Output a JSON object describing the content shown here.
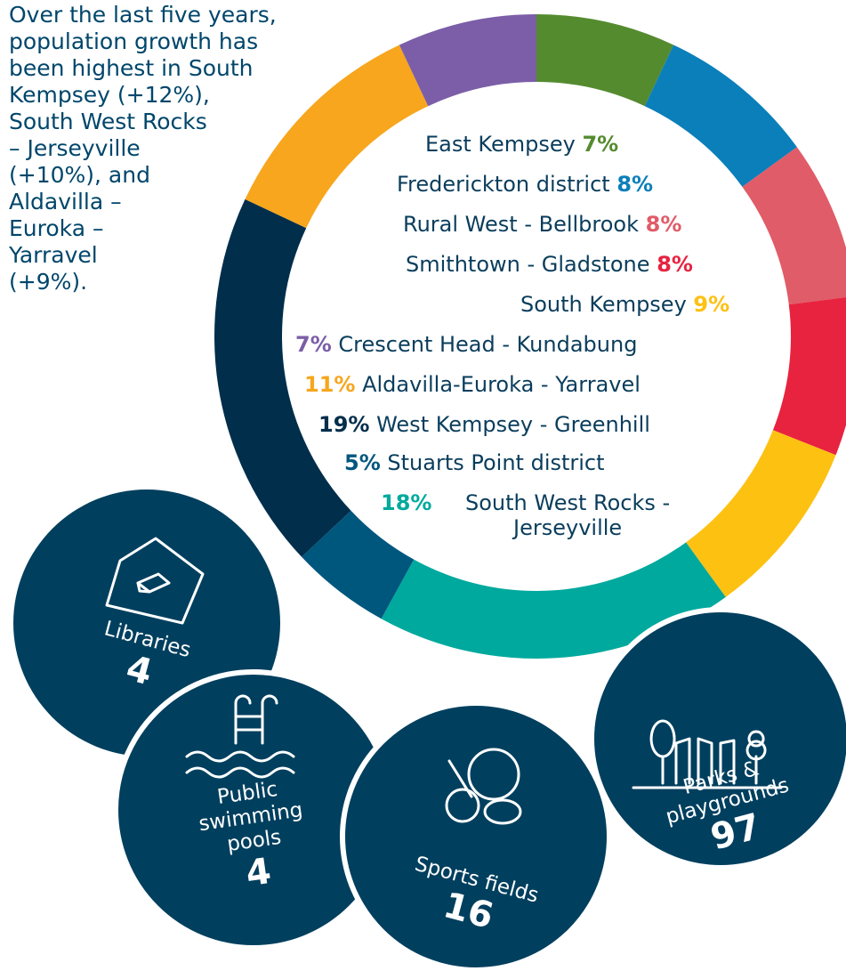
{
  "chart_data": {
    "type": "donut",
    "categories": [
      "East Kempsey",
      "Frederickton district",
      "Rural West - Bellbrook",
      "Smithtown - Gladstone",
      "South Kempsey",
      "South West Rocks - Jerseyville",
      "Stuarts Point district",
      "West Kempsey - Greenhill",
      "Aldavilla-Euroka - Yarravel",
      "Crescent Head - Kundabung"
    ],
    "values": [
      7,
      8,
      8,
      8,
      9,
      18,
      5,
      19,
      11,
      7
    ],
    "value_labels": [
      "7%",
      "8%",
      "8%",
      "8%",
      "9%",
      "18%",
      "5%",
      "19%",
      "11%",
      "7%"
    ],
    "colors": [
      "#558b2f",
      "#0a7fba",
      "#e05c68",
      "#e8233f",
      "#fdc112",
      "#00a99d",
      "#00577e",
      "#002e4b",
      "#f7a61d",
      "#7b5ea7"
    ]
  },
  "paragraph_lines": [
    "Over the last five years,",
    "population growth has",
    "been highest in South",
    "Kempsey (+12%),",
    "South West Rocks",
    "– Jerseyville",
    "(+10%), and",
    "Aldavilla –",
    "Euroka –",
    "Yarravel",
    "(+9%)."
  ],
  "facilities": [
    {
      "label": "Libraries",
      "value": 4
    },
    {
      "label": "Public swimming pools",
      "value": 4
    },
    {
      "label": "Sports fields",
      "value": 16
    },
    {
      "label": "Parks & playgrounds",
      "value": 97
    }
  ]
}
